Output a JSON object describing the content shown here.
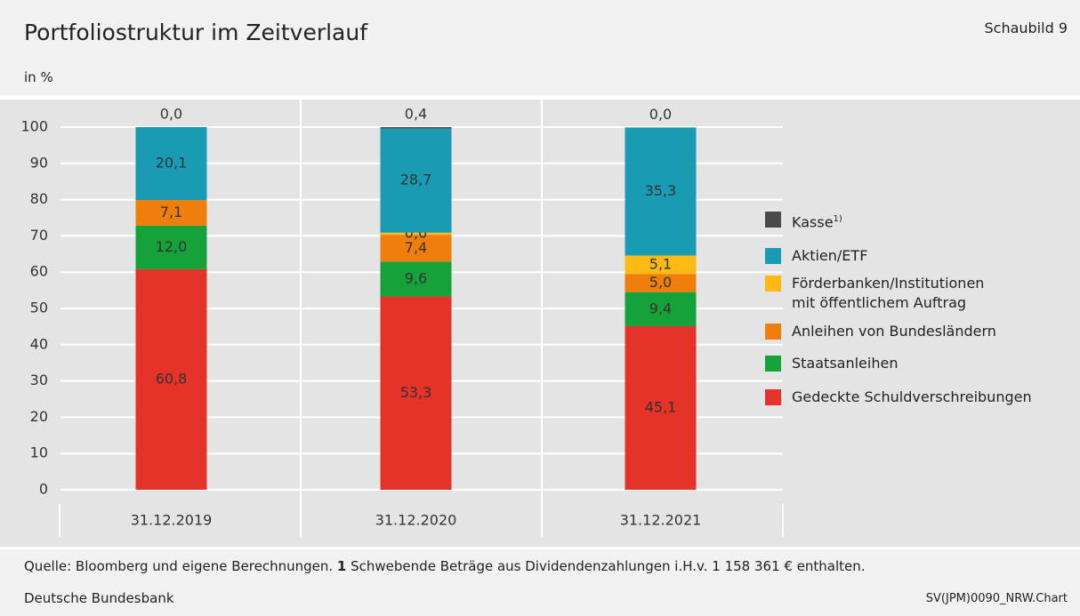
{
  "header": {
    "title": "Portfoliostruktur im Zeitverlauf",
    "figure": "Schaubild 9",
    "unit": "in %"
  },
  "chart_data": {
    "type": "stacked_bar",
    "categories": [
      "31.12.2019",
      "31.12.2020",
      "31.12.2021"
    ],
    "ylim": [
      0,
      100
    ],
    "yticks": [
      0,
      10,
      20,
      30,
      40,
      50,
      60,
      70,
      80,
      90,
      100
    ],
    "grid": true,
    "legend": "right",
    "series": [
      {
        "name": "Gedeckte Schuldverschreibungen",
        "color": "#e5332a",
        "values": [
          60.8,
          53.3,
          45.1
        ],
        "value_labels": [
          "60,8",
          "53,3",
          "45,1"
        ]
      },
      {
        "name": "Staatsanleihen",
        "color": "#15a23a",
        "values": [
          12.0,
          9.6,
          9.4
        ],
        "value_labels": [
          "12,0",
          "9,6",
          "9,4"
        ]
      },
      {
        "name": "Anleihen von Bundesländern",
        "color": "#f07e0c",
        "values": [
          7.1,
          7.4,
          5.0
        ],
        "value_labels": [
          "7,1",
          "7,4",
          "5,0"
        ]
      },
      {
        "name": "Förderbanken/Institutionen\nmit öffentlichem Auftrag",
        "color": "#fdb913",
        "values": [
          null,
          0.6,
          5.1
        ],
        "value_labels": [
          null,
          "0,6",
          "5,1"
        ]
      },
      {
        "name": "Aktien/ETF",
        "color": "#1a9bb4",
        "values": [
          20.1,
          28.7,
          35.3
        ],
        "value_labels": [
          "20,1",
          "28,7",
          "35,3"
        ]
      },
      {
        "name": "Kasse",
        "note": "1)",
        "color": "#4a4a4a",
        "values": [
          0.0,
          0.4,
          0.0
        ],
        "value_labels": [
          "0,0",
          "0,4",
          "0,0"
        ],
        "label_position": "top"
      }
    ]
  },
  "footer": {
    "source": "Quelle: Bloomberg und eigene Berechnungen.",
    "note_number": "1",
    "note": "Schwebende Beträge aus Dividendenzahlungen i.H.v. 1 158 361 € enthalten.",
    "publisher": "Deutsche Bundesbank",
    "code": "SV(JPM)0090_NRW.Chart"
  }
}
